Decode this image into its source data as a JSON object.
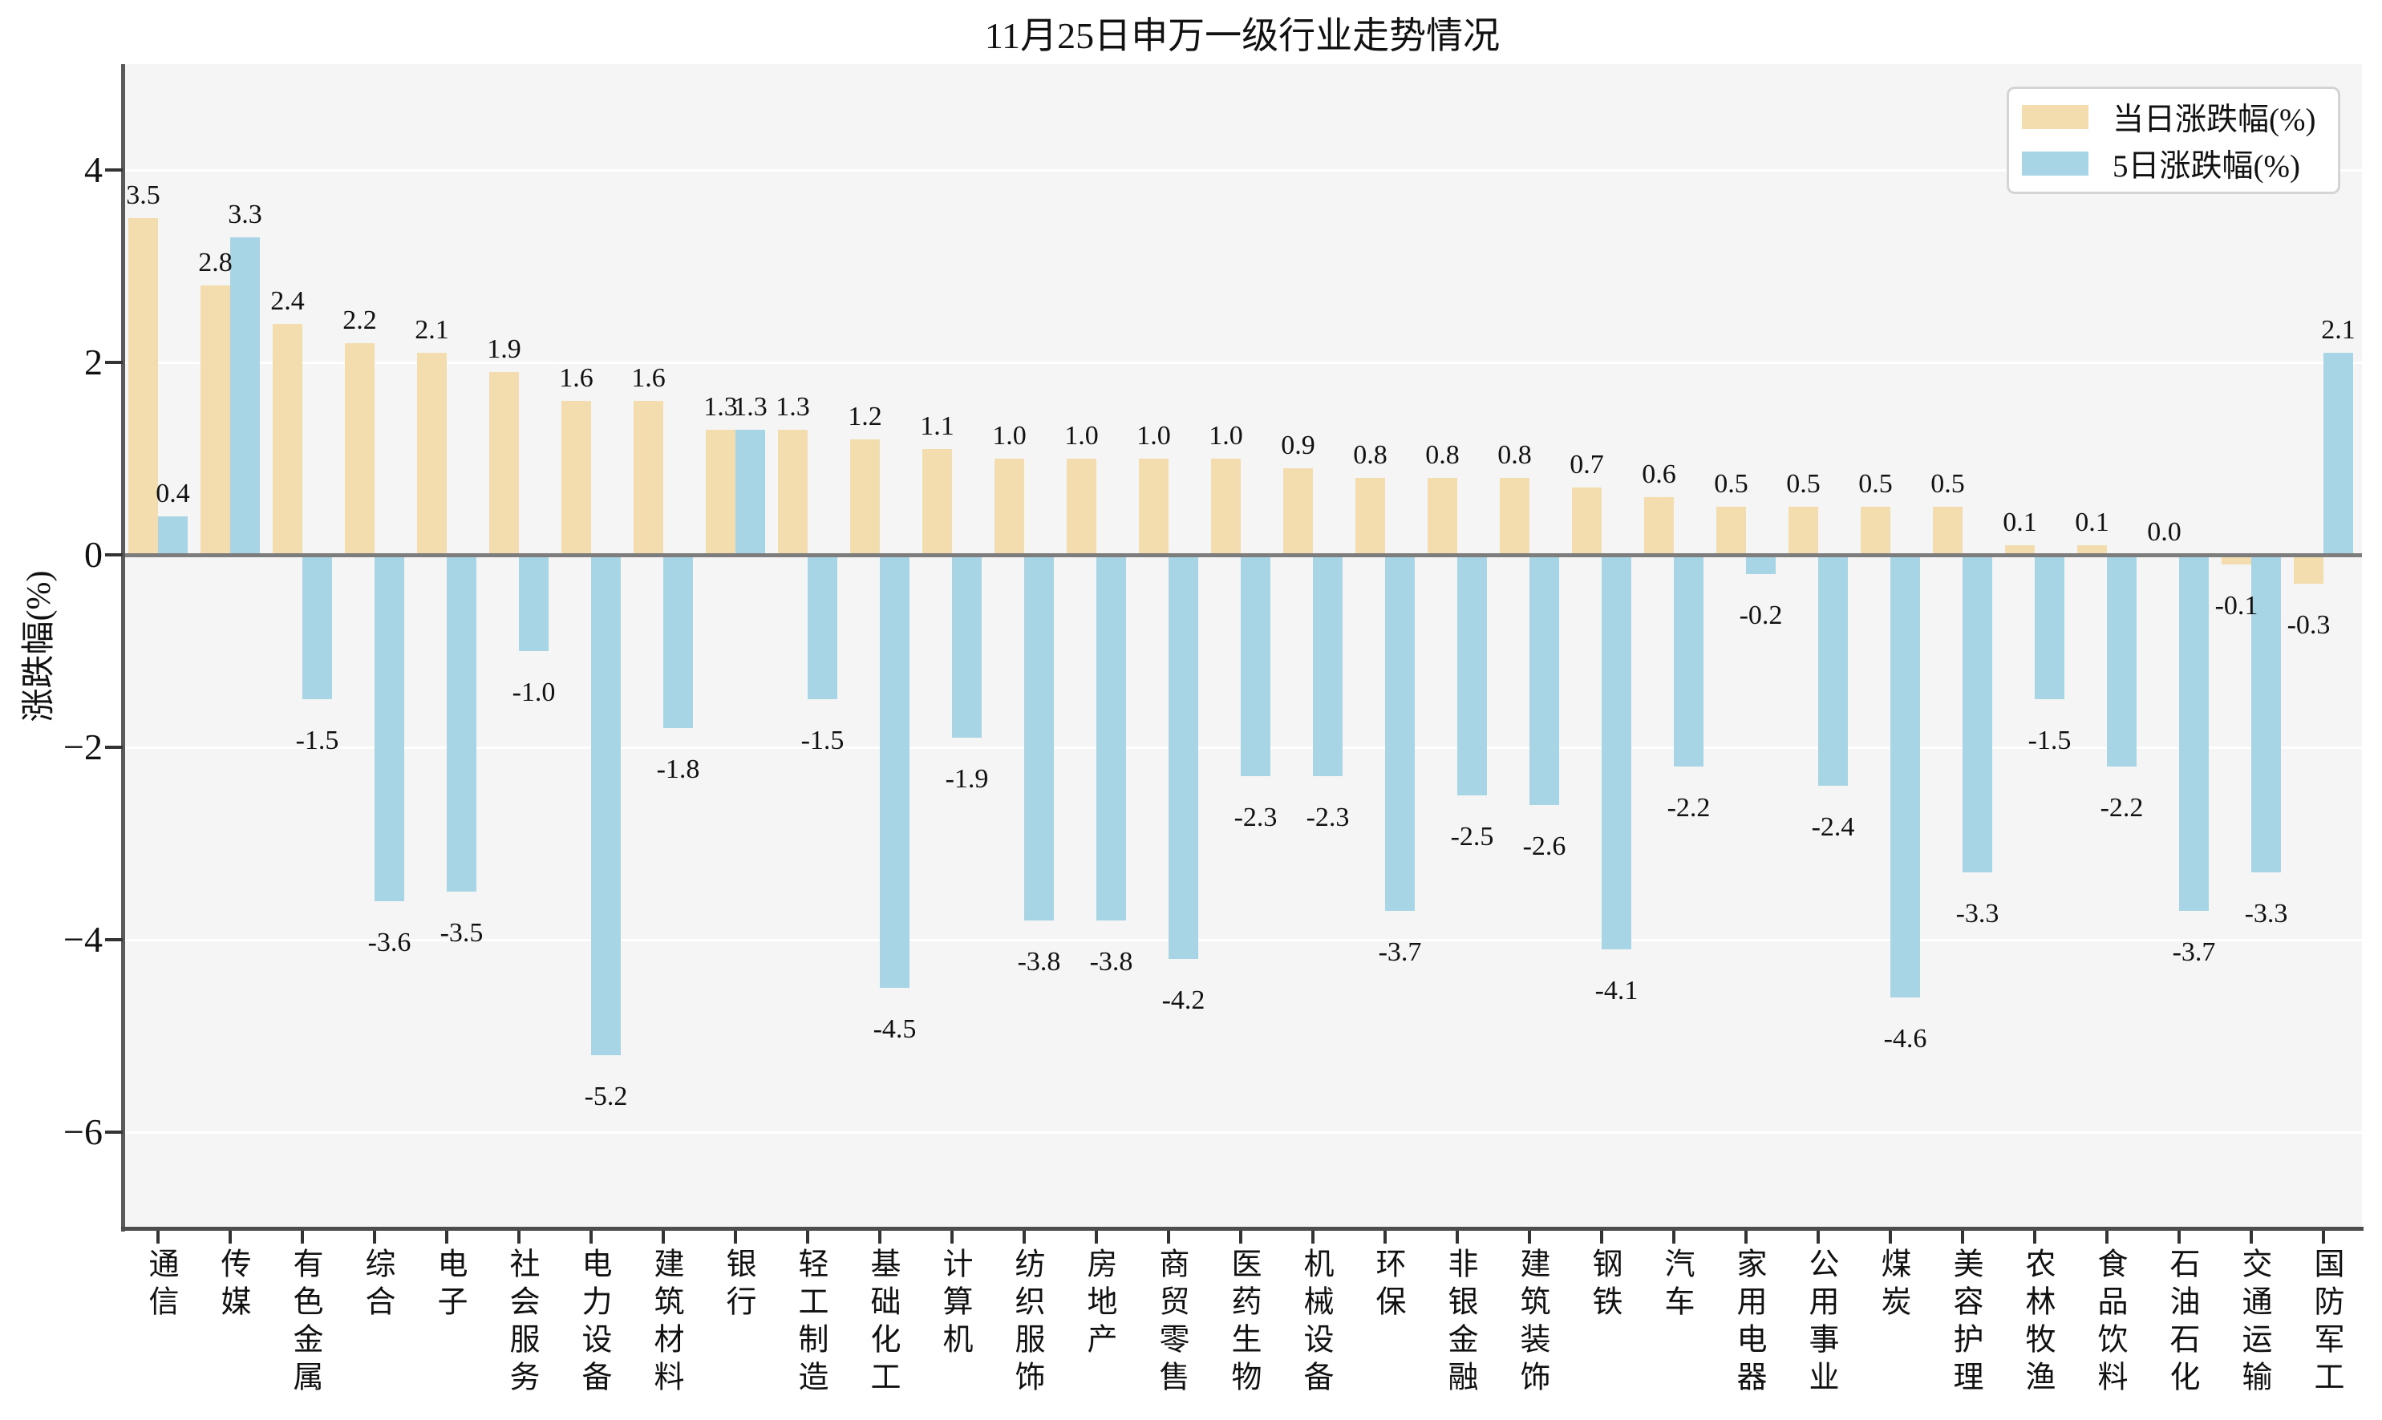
{
  "chart_data": {
    "type": "bar",
    "title": "11月25日申万一级行业走势情况",
    "ylabel": "涨跌幅(%)",
    "xlabel": "",
    "categories": [
      "通信",
      "传媒",
      "有色金属",
      "综合",
      "电子",
      "社会服务",
      "电力设备",
      "建筑材料",
      "银行",
      "轻工制造",
      "基础化工",
      "计算机",
      "纺织服饰",
      "房地产",
      "商贸零售",
      "医药生物",
      "机械设备",
      "环保",
      "非银金融",
      "建筑装饰",
      "钢铁",
      "汽车",
      "家用电器",
      "公用事业",
      "煤炭",
      "美容护理",
      "农林牧渔",
      "食品饮料",
      "石油石化",
      "交通运输",
      "国防军工"
    ],
    "series": [
      {
        "name": "当日涨跌幅(%)",
        "color": "#f3ddae",
        "values": [
          3.5,
          2.8,
          2.4,
          2.2,
          2.1,
          1.9,
          1.6,
          1.6,
          1.3,
          1.3,
          1.2,
          1.1,
          1.0,
          1.0,
          1.0,
          1.0,
          0.9,
          0.8,
          0.8,
          0.8,
          0.7,
          0.6,
          0.5,
          0.5,
          0.5,
          0.5,
          0.1,
          0.1,
          0.0,
          -0.1,
          -0.3
        ]
      },
      {
        "name": "5日涨跌幅(%)",
        "color": "#a8d5e5",
        "values": [
          0.4,
          3.3,
          -1.5,
          -3.6,
          -3.5,
          -1.0,
          -5.2,
          -1.8,
          1.3,
          -1.5,
          -4.5,
          -1.9,
          -3.8,
          -3.8,
          -4.2,
          -2.3,
          -2.3,
          -3.7,
          -2.5,
          -2.6,
          -4.1,
          -2.2,
          -0.2,
          -2.4,
          -4.6,
          -3.3,
          -1.5,
          -2.2,
          -3.7,
          -3.3,
          2.1
        ]
      }
    ],
    "yticks": [
      4,
      2,
      0,
      -2,
      -4,
      -6
    ],
    "ylim": [
      -7.0,
      5.1
    ],
    "grid": true,
    "value_labels": true,
    "legend_position": "upper right"
  },
  "style_colors": {
    "plot_background": "#f5f5f5",
    "gridline": "#ffffff",
    "zero_line": "#7d7d7d",
    "spine": "#5a5a5a",
    "text": "#111111"
  }
}
